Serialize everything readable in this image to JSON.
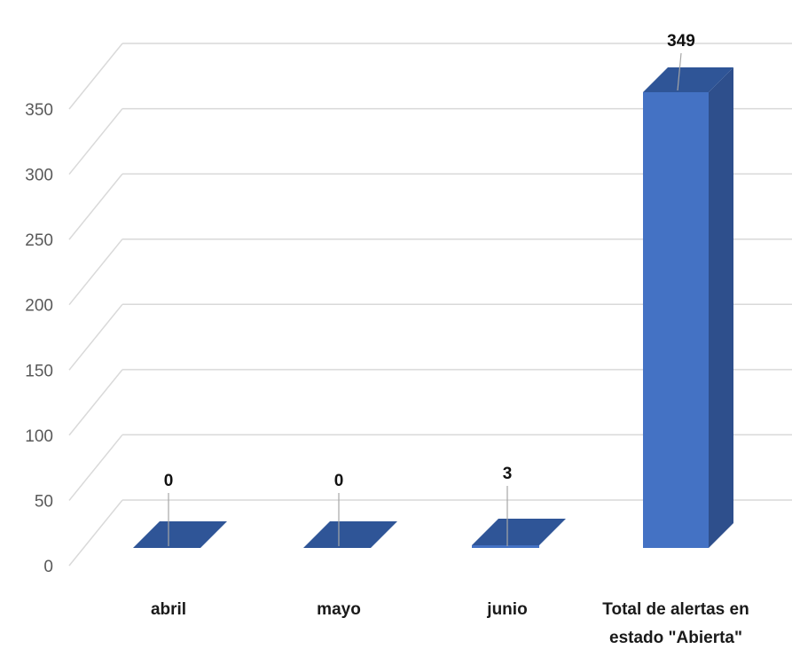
{
  "chart_data": {
    "type": "bar",
    "style": "3d-column",
    "title": "",
    "xlabel": "",
    "ylabel": "",
    "categories": [
      "abril",
      "mayo",
      "junio",
      "Total de alertas en estado \"Abierta\""
    ],
    "values": [
      0,
      0,
      3,
      349
    ],
    "data_labels": [
      "0",
      "0",
      "3",
      "349"
    ],
    "ylim": [
      0,
      350
    ],
    "yticks": [
      0,
      50,
      100,
      150,
      200,
      250,
      300,
      350
    ],
    "grid": true,
    "legend": "none",
    "colors": {
      "bar_front": "#4472c4",
      "bar_top": "#2f5597",
      "bar_side": "#2e4f8c",
      "grid": "#d9d9d9",
      "leader": "#a6a6a6"
    }
  }
}
